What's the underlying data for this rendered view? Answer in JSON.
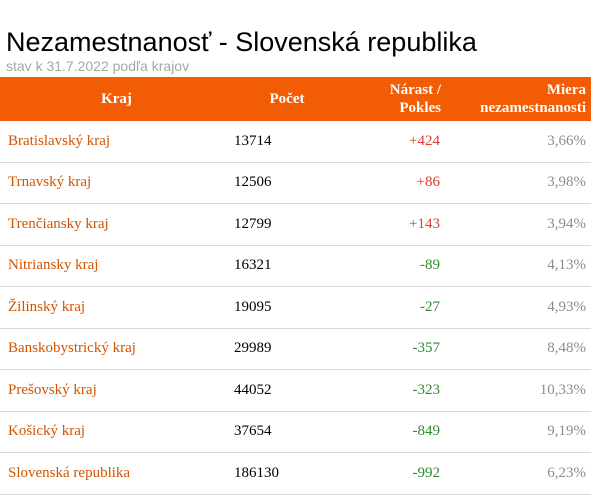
{
  "title": "Nezamestnanosť - Slovenská republika",
  "subtitle": "stav k 31.7.2022 podľa krajov",
  "colors": {
    "header_bg": "#f25c05",
    "region_text": "#d35400",
    "increase": "#e03c31",
    "decrease": "#2e8b2e",
    "rate_text": "#8c8c8c"
  },
  "chart_data": {
    "type": "table",
    "columns": [
      "Kraj",
      "Počet",
      "Nárast / Pokles",
      "Miera nezamestnanosti"
    ],
    "rows": [
      {
        "region": "Bratislavský kraj",
        "count": "13714",
        "change": "+424",
        "rate": "3,66%"
      },
      {
        "region": "Trnavský kraj",
        "count": "12506",
        "change": "+86",
        "rate": "3,98%"
      },
      {
        "region": "Trenčiansky kraj",
        "count": "12799",
        "change": "+143",
        "rate": "3,94%"
      },
      {
        "region": "Nitriansky kraj",
        "count": "16321",
        "change": "-89",
        "rate": "4,13%"
      },
      {
        "region": "Žilinský kraj",
        "count": "19095",
        "change": "-27",
        "rate": "4,93%"
      },
      {
        "region": "Banskobystrický kraj",
        "count": "29989",
        "change": "-357",
        "rate": "8,48%"
      },
      {
        "region": "Prešovský kraj",
        "count": "44052",
        "change": "-323",
        "rate": "10,33%"
      },
      {
        "region": "Košický kraj",
        "count": "37654",
        "change": "-849",
        "rate": "9,19%"
      },
      {
        "region": "Slovenská republika",
        "count": "186130",
        "change": "-992",
        "rate": "6,23%"
      }
    ]
  }
}
